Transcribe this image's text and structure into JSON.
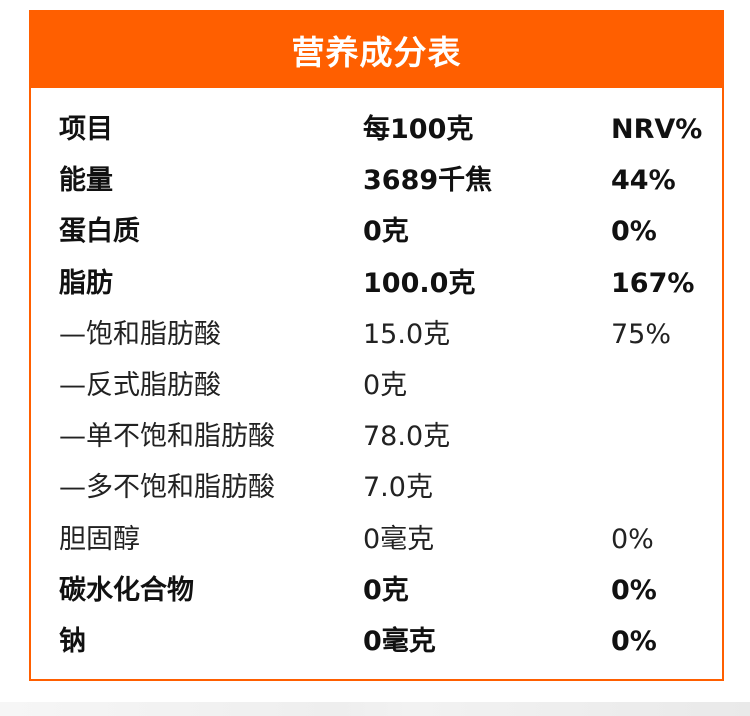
{
  "table": {
    "title": "营养成分表",
    "rows": [
      {
        "name": "项目",
        "value": "每100克",
        "nrv": "NRV%",
        "style": "bold"
      },
      {
        "name": "能量",
        "value": "3689千焦",
        "nrv": "44%",
        "style": "bold"
      },
      {
        "name": "蛋白质",
        "value": "0克",
        "nrv": "0%",
        "style": "bold"
      },
      {
        "name": "脂肪",
        "value": "100.0克",
        "nrv": "167%",
        "style": "bold"
      },
      {
        "name": "—饱和脂肪酸",
        "value": "15.0克",
        "nrv": "75%",
        "style": "light"
      },
      {
        "name": "—反式脂肪酸",
        "value": "0克",
        "nrv": "",
        "style": "light"
      },
      {
        "name": "—单不饱和脂肪酸",
        "value": "78.0克",
        "nrv": "",
        "style": "light"
      },
      {
        "name": "—多不饱和脂肪酸",
        "value": "7.0克",
        "nrv": "",
        "style": "light"
      },
      {
        "name": "胆固醇",
        "value": "0毫克",
        "nrv": "0%",
        "style": "light"
      },
      {
        "name": "碳水化合物",
        "value": "0克",
        "nrv": "0%",
        "style": "bold"
      },
      {
        "name": "钠",
        "value": "0毫克",
        "nrv": "0%",
        "style": "bold"
      }
    ]
  },
  "colors": {
    "accent": "#ff5f00",
    "header_text": "#ffffff",
    "text": "#111111"
  }
}
